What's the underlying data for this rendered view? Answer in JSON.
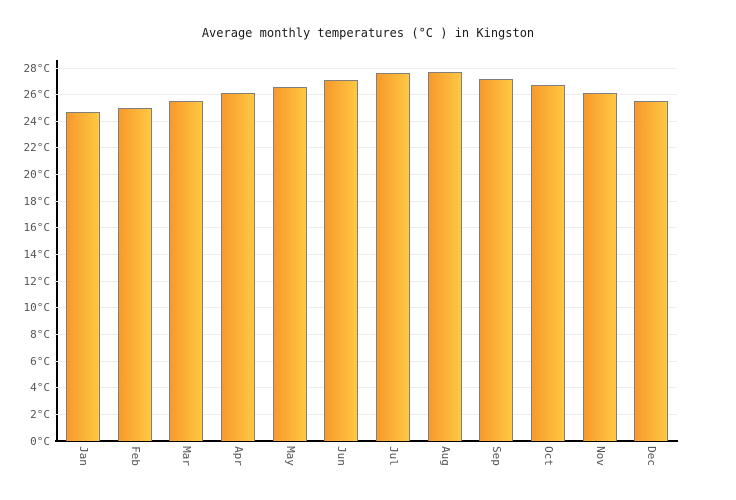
{
  "title": "Average monthly temperatures (°C ) in Kingston",
  "chart_data": {
    "type": "bar",
    "title": "Average monthly temperatures (°C ) in Kingston",
    "categories": [
      "Jan",
      "Feb",
      "Mar",
      "Apr",
      "May",
      "Jun",
      "Jul",
      "Aug",
      "Sep",
      "Oct",
      "Nov",
      "Dec"
    ],
    "values": [
      24.7,
      25.0,
      25.5,
      26.1,
      26.6,
      27.1,
      27.6,
      27.7,
      27.2,
      26.7,
      26.1,
      25.5
    ],
    "unit": "°C",
    "xlabel": "",
    "ylabel": "",
    "ylim": [
      0,
      28
    ],
    "ytick_step": 2,
    "ytick_suffix": "°C",
    "grid": true,
    "legend": false,
    "x_label_rotation_deg": 90
  },
  "colors": {
    "background": "#ffffff",
    "bar_gradient_left": "#F8992C",
    "bar_gradient_right": "#FFC843",
    "bar_border": "#7f7f7f",
    "gridline": "#ededed",
    "axis": "#000000",
    "tick_label": "#555555",
    "title_text": "#1a1a1a"
  }
}
